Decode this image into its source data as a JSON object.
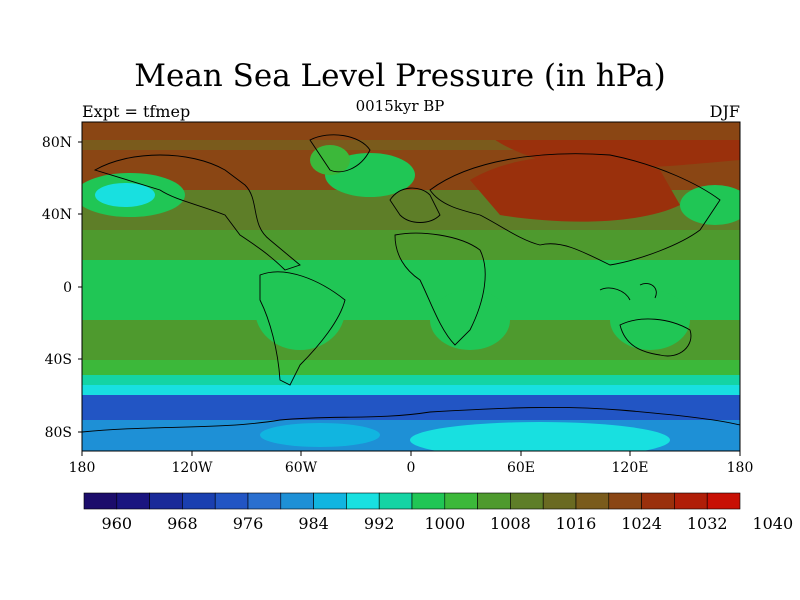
{
  "title": "Mean Sea Level Pressure (in hPa)",
  "subtitle": "0015kyr BP",
  "left_string": "Expt = tfmep",
  "right_string": "DJF",
  "lat_ticks": [
    "80N",
    "40N",
    "0",
    "40S",
    "80S"
  ],
  "lon_ticks": [
    "180",
    "120W",
    "60W",
    "0",
    "60E",
    "120E",
    "180"
  ],
  "colorbar": {
    "colors": [
      "#1c0d6b",
      "#1a1580",
      "#1a2a99",
      "#1a3fb0",
      "#2255c4",
      "#2a6fcf",
      "#1e90d6",
      "#11b5e0",
      "#18e0e0",
      "#14d4a4",
      "#20c655",
      "#3cb83a",
      "#4e9a2e",
      "#5e7e28",
      "#6a6a22",
      "#7a5b1c",
      "#8a4614",
      "#9a300c",
      "#b01e08",
      "#c81004"
    ],
    "labels": [
      "960",
      "968",
      "976",
      "984",
      "992",
      "1000",
      "1008",
      "1016",
      "1024",
      "1032",
      "1040"
    ]
  }
}
